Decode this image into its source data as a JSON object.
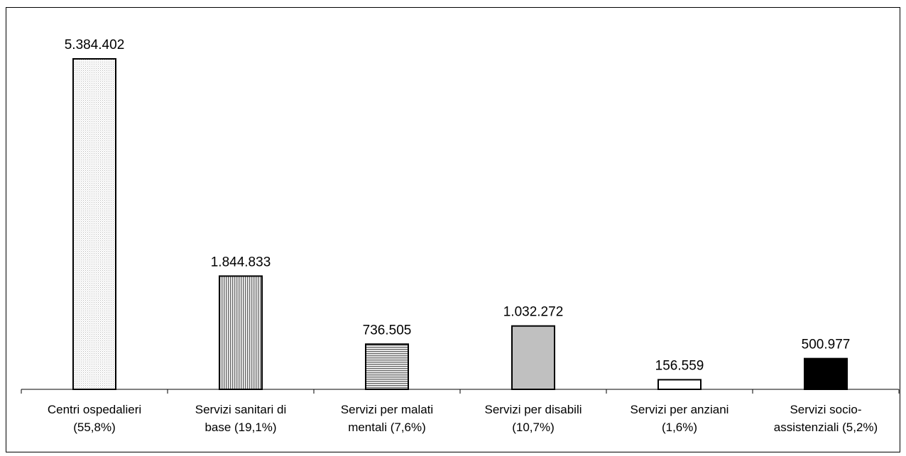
{
  "chart_data": {
    "type": "bar",
    "title": "",
    "xlabel": "",
    "ylabel": "",
    "ylim": [
      0,
      5384402
    ],
    "grid": false,
    "legend": "none",
    "categories": [
      [
        "Centri ospedalieri",
        "(55,8%)"
      ],
      [
        "Servizi sanitari di",
        "base (19,1%)"
      ],
      [
        "Servizi per malati",
        "mentali (7,6%)"
      ],
      [
        "Servizi per disabili",
        "(10,7%)"
      ],
      [
        "Servizi per anziani",
        "(1,6%)"
      ],
      [
        "Servizi socio-",
        "assistenziali (5,2%)"
      ]
    ],
    "values": [
      5384402,
      1844833,
      736505,
      1032272,
      156559,
      500977
    ],
    "value_labels": [
      "5.384.402",
      "1.844.833",
      "736.505",
      "1.032.272",
      "156.559",
      "500.977"
    ],
    "bar_fills": [
      "pattern-dots",
      "pattern-vlines",
      "pattern-hlines",
      "#c0c0c0",
      "#ffffff",
      "#000000"
    ]
  }
}
